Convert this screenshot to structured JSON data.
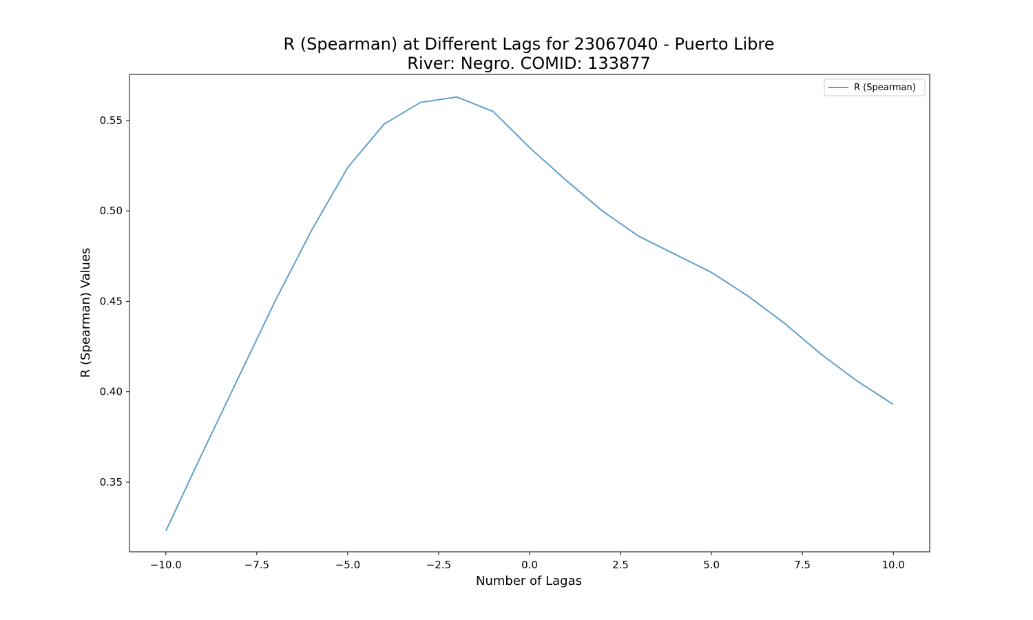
{
  "chart_data": {
    "type": "line",
    "title": "R (Spearman) at Different Lags for 23067040 - Puerto Libre",
    "subtitle": "River: Negro. COMID: 133877",
    "xlabel": "Number of Lagas",
    "ylabel": "R (Spearman) Values",
    "xlim": [
      -11,
      11
    ],
    "ylim": [
      0.3115,
      0.5755
    ],
    "xticks": [
      -10.0,
      -7.5,
      -5.0,
      -2.5,
      0.0,
      2.5,
      5.0,
      7.5,
      10.0
    ],
    "xtick_labels": [
      "−10.0",
      "−7.5",
      "−5.0",
      "−2.5",
      "0.0",
      "2.5",
      "5.0",
      "7.5",
      "10.0"
    ],
    "yticks": [
      0.35,
      0.4,
      0.45,
      0.5,
      0.55
    ],
    "ytick_labels": [
      "0.35",
      "0.40",
      "0.45",
      "0.50",
      "0.55"
    ],
    "grid": false,
    "legend": {
      "placement": "top-right",
      "entries": [
        "R (Spearman)"
      ]
    },
    "series": [
      {
        "name": "R (Spearman)",
        "color": "#5f9fcb",
        "x": [
          -10,
          -9,
          -8,
          -7,
          -6,
          -5,
          -4,
          -3,
          -2,
          -1,
          0,
          1,
          2,
          3,
          4,
          5,
          6,
          7,
          8,
          9,
          10
        ],
        "y": [
          0.323,
          0.366,
          0.408,
          0.45,
          0.489,
          0.524,
          0.548,
          0.56,
          0.563,
          0.555,
          0.535,
          0.517,
          0.5,
          0.486,
          0.476,
          0.466,
          0.453,
          0.438,
          0.421,
          0.406,
          0.393
        ]
      }
    ]
  }
}
